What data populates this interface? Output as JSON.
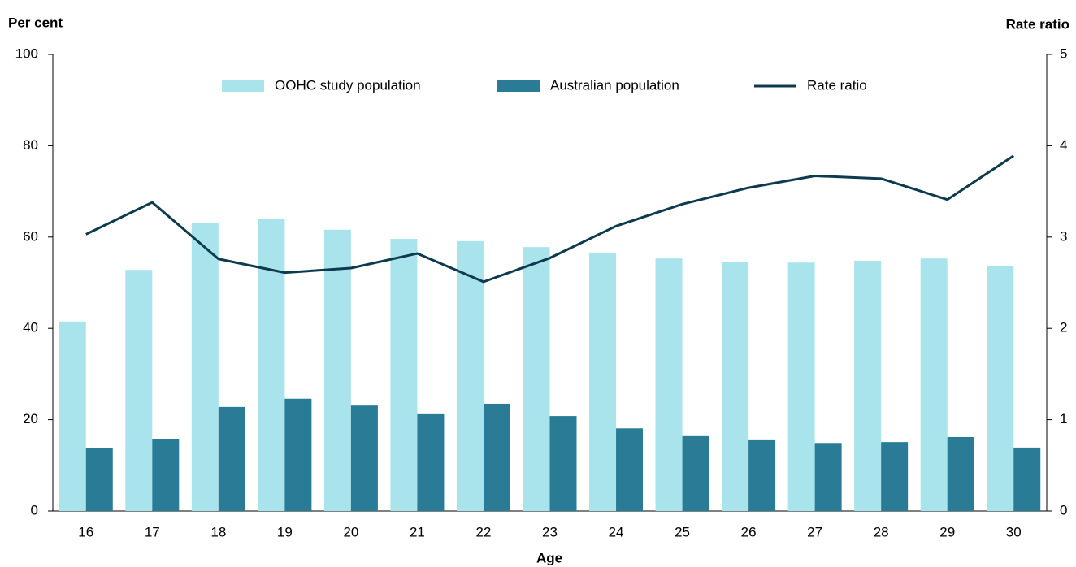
{
  "chart_data": {
    "type": "bar-line",
    "y_label": "Per cent",
    "y2_label": "Rate ratio",
    "x_label": "Age",
    "categories": [
      "16",
      "17",
      "18",
      "19",
      "20",
      "21",
      "22",
      "23",
      "24",
      "25",
      "26",
      "27",
      "28",
      "29",
      "30"
    ],
    "series": [
      {
        "name": "OOHC study population",
        "type": "bar",
        "color": "#a9e3ec",
        "values": [
          41.5,
          52.8,
          63.0,
          63.9,
          61.6,
          59.6,
          59.1,
          57.8,
          56.6,
          55.3,
          54.6,
          54.4,
          54.8,
          55.3,
          53.7
        ]
      },
      {
        "name": "Australian population",
        "type": "bar",
        "color": "#2a7c96",
        "values": [
          13.7,
          15.7,
          22.8,
          24.6,
          23.1,
          21.2,
          23.5,
          20.8,
          18.1,
          16.4,
          15.5,
          14.9,
          15.1,
          16.2,
          13.9
        ]
      },
      {
        "name": "Rate ratio",
        "type": "line",
        "axis": "y2",
        "color": "#0e3a4f",
        "values": [
          3.03,
          3.38,
          2.76,
          2.61,
          2.66,
          2.82,
          2.51,
          2.77,
          3.12,
          3.36,
          3.54,
          3.67,
          3.64,
          3.41,
          3.89
        ]
      }
    ],
    "ylim": [
      0,
      100
    ],
    "yticks": [
      0,
      20,
      40,
      60,
      80,
      100
    ],
    "y2lim": [
      0,
      5
    ],
    "y2ticks": [
      0,
      1,
      2,
      3,
      4,
      5
    ],
    "legend": "top"
  }
}
